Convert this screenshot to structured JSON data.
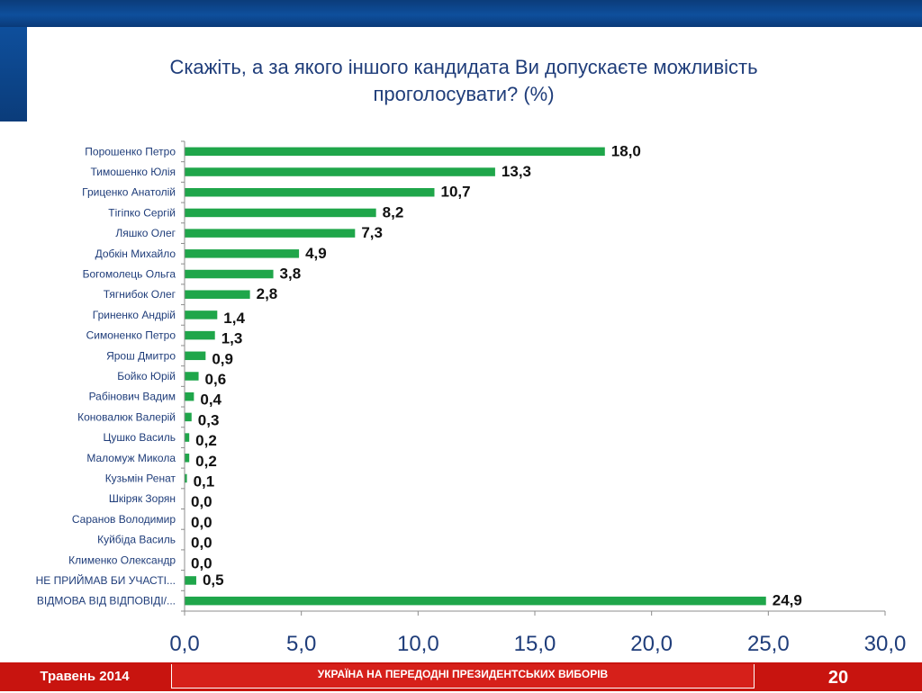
{
  "title": "Скажіть, а за якого іншого кандидата Ви допускаєте можливість проголосувати? (%)",
  "footer": {
    "date": "Травень 2014",
    "caption": "УКРАЇНА НА ПЕРЕДОДНІ ПРЕЗИДЕНТСЬКИХ ВИБОРІВ",
    "page": "20"
  },
  "colors": {
    "bar": "#1fa64a",
    "header_blue": "#0e4f9c",
    "footer_red": "#c8140f",
    "title_text": "#1f3d7a"
  },
  "chart_data": {
    "type": "bar",
    "orientation": "horizontal",
    "categories": [
      "Порошенко Петро",
      "Тимошенко Юлія",
      "Гриценко Анатолій",
      "Тігіпко Сергій",
      "Ляшко Олег",
      "Добкін Михайло",
      "Богомолець Ольга",
      "Тягнибок Олег",
      "Гриненко Андрій",
      "Симоненко Петро",
      "Ярош Дмитро",
      "Бойко Юрій",
      "Рабінович Вадим",
      "Коновалюк Валерій",
      "Цушко Василь",
      "Маломуж Микола",
      "Кузьмін Ренат",
      "Шкіряк Зорян",
      "Саранов Володимир",
      "Куйбіда Василь",
      "Клименко Олександр",
      "НЕ ПРИЙМАВ БИ УЧАСТІ...",
      "ВІДМОВА ВІД ВІДПОВІДІ/..."
    ],
    "values": [
      18.0,
      13.3,
      10.7,
      8.2,
      7.3,
      4.9,
      3.8,
      2.8,
      1.4,
      1.3,
      0.9,
      0.6,
      0.4,
      0.3,
      0.2,
      0.2,
      0.1,
      0.0,
      0.0,
      0.0,
      0.0,
      0.5,
      24.9
    ],
    "value_labels": [
      "18,0",
      "13,3",
      "10,7",
      "8,2",
      "7,3",
      "4,9",
      "3,8",
      "2,8",
      "1,4",
      "1,3",
      "0,9",
      "0,6",
      "0,4",
      "0,3",
      "0,2",
      "0,2",
      "0,1",
      "0,0",
      "0,0",
      "0,0",
      "0,0",
      "0,5",
      "24,9"
    ],
    "xlim": [
      0,
      30
    ],
    "xticks": [
      0,
      5,
      10,
      15,
      20,
      25,
      30
    ],
    "xtick_labels": [
      "0,0",
      "5,0",
      "10,0",
      "15,0",
      "20,0",
      "25,0",
      "30,0"
    ],
    "grid": false,
    "legend": "none"
  }
}
